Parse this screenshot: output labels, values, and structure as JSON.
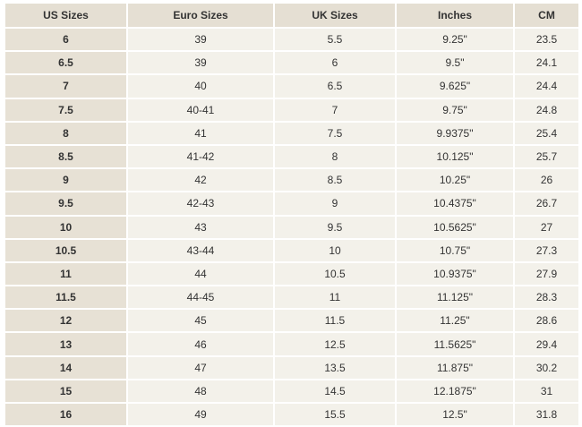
{
  "headers": [
    "US Sizes",
    "Euro Sizes",
    "UK Sizes",
    "Inches",
    "CM"
  ],
  "rows": [
    [
      "6",
      "39",
      "5.5",
      "9.25\"",
      "23.5"
    ],
    [
      "6.5",
      "39",
      "6",
      "9.5\"",
      "24.1"
    ],
    [
      "7",
      "40",
      "6.5",
      "9.625\"",
      "24.4"
    ],
    [
      "7.5",
      "40-41",
      "7",
      "9.75\"",
      "24.8"
    ],
    [
      "8",
      "41",
      "7.5",
      "9.9375\"",
      "25.4"
    ],
    [
      "8.5",
      "41-42",
      "8",
      "10.125\"",
      "25.7"
    ],
    [
      "9",
      "42",
      "8.5",
      "10.25\"",
      "26"
    ],
    [
      "9.5",
      "42-43",
      "9",
      "10.4375\"",
      "26.7"
    ],
    [
      "10",
      "43",
      "9.5",
      "10.5625\"",
      "27"
    ],
    [
      "10.5",
      "43-44",
      "10",
      "10.75\"",
      "27.3"
    ],
    [
      "11",
      "44",
      "10.5",
      "10.9375\"",
      "27.9"
    ],
    [
      "11.5",
      "44-45",
      "11",
      "11.125\"",
      "28.3"
    ],
    [
      "12",
      "45",
      "11.5",
      "11.25\"",
      "28.6"
    ],
    [
      "13",
      "46",
      "12.5",
      "11.5625\"",
      "29.4"
    ],
    [
      "14",
      "47",
      "13.5",
      "11.875\"",
      "30.2"
    ],
    [
      "15",
      "48",
      "14.5",
      "12.1875\"",
      "31"
    ],
    [
      "16",
      "49",
      "15.5",
      "12.5\"",
      "31.8"
    ]
  ],
  "colors": {
    "header_bg": "#e5dfd3",
    "first_col_bg": "#e7e1d5",
    "cell_bg": "#f3f1ea"
  }
}
